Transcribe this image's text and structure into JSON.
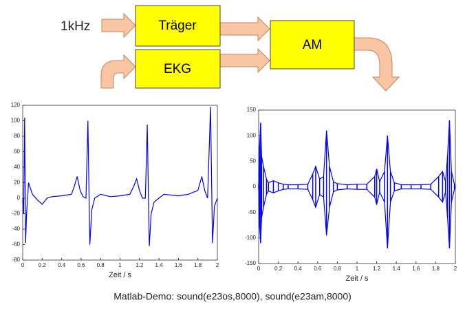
{
  "diagram": {
    "input_label": "1kHz",
    "nodes": [
      {
        "label": "Träger"
      },
      {
        "label": "EKG"
      },
      {
        "label": "AM"
      }
    ]
  },
  "chart_data": [
    {
      "type": "line",
      "color": "#0000ff",
      "xlabel": "Zeit / s",
      "x": [
        0,
        0.01,
        0.02,
        0.03,
        0.04,
        0.06,
        0.1,
        0.15,
        0.2,
        0.25,
        0.3,
        0.4,
        0.5,
        0.53,
        0.56,
        0.59,
        0.62,
        0.65,
        0.67,
        0.69,
        0.71,
        0.74,
        0.8,
        0.9,
        1.0,
        1.1,
        1.14,
        1.17,
        1.2,
        1.23,
        1.26,
        1.28,
        1.3,
        1.32,
        1.35,
        1.45,
        1.6,
        1.7,
        1.8,
        1.84,
        1.87,
        1.9,
        1.93,
        1.95,
        1.97,
        2.0
      ],
      "values": [
        0,
        -20,
        104,
        -58,
        -20,
        20,
        5,
        -2,
        -8,
        0,
        2,
        3,
        5,
        15,
        28,
        10,
        2,
        0,
        100,
        -60,
        -15,
        0,
        5,
        2,
        3,
        5,
        15,
        25,
        10,
        0,
        0,
        95,
        -62,
        -20,
        -5,
        5,
        3,
        5,
        10,
        28,
        10,
        0,
        118,
        -58,
        -10,
        0
      ],
      "xlim": [
        0,
        2
      ],
      "xticks": [
        0,
        0.2,
        0.4,
        0.6,
        0.8,
        1,
        1.2,
        1.4,
        1.6,
        1.8,
        2
      ],
      "ylim": [
        -80,
        120
      ],
      "yticks": [
        -80,
        -60,
        -40,
        -20,
        0,
        20,
        40,
        60,
        80,
        100,
        120
      ]
    },
    {
      "type": "band",
      "color": "#0000ff",
      "xlabel": "Zeit / s",
      "x": [
        0,
        0.01,
        0.02,
        0.03,
        0.05,
        0.08,
        0.1,
        0.15,
        0.2,
        0.25,
        0.3,
        0.4,
        0.5,
        0.55,
        0.58,
        0.62,
        0.66,
        0.69,
        0.72,
        0.76,
        0.8,
        0.9,
        1.0,
        1.1,
        1.18,
        1.2,
        1.23,
        1.28,
        1.31,
        1.34,
        1.38,
        1.45,
        1.55,
        1.65,
        1.75,
        1.83,
        1.87,
        1.9,
        1.92,
        1.94,
        1.96,
        1.99,
        2.0
      ],
      "series": [
        {
          "values": [
            5,
            80,
            125,
            60,
            40,
            15,
            8,
            12,
            8,
            5,
            4,
            4,
            5,
            25,
            40,
            15,
            20,
            110,
            40,
            10,
            6,
            4,
            5,
            5,
            20,
            35,
            10,
            30,
            100,
            30,
            8,
            4,
            4,
            4,
            5,
            20,
            30,
            10,
            60,
            130,
            30,
            5,
            0
          ]
        },
        {
          "values": [
            -5,
            -80,
            -110,
            -60,
            -40,
            -15,
            -8,
            -12,
            -8,
            -5,
            -4,
            -4,
            -5,
            -25,
            -40,
            -15,
            -20,
            -95,
            -40,
            -10,
            -6,
            -4,
            -5,
            -5,
            -20,
            -35,
            -10,
            -30,
            -120,
            -30,
            -8,
            -4,
            -4,
            -4,
            -5,
            -20,
            -30,
            -10,
            -60,
            -120,
            -30,
            -5,
            0
          ]
        }
      ],
      "xlim": [
        0,
        2
      ],
      "xticks": [
        0,
        0.2,
        0.4,
        0.6,
        0.8,
        1,
        1.2,
        1.4,
        1.6,
        1.8,
        2
      ],
      "ylim": [
        -150,
        150
      ],
      "yticks": [
        -150,
        -100,
        -50,
        0,
        50,
        100,
        150
      ]
    }
  ],
  "caption": "Matlab-Demo:  sound(e23os,8000), sound(e23am,8000)"
}
